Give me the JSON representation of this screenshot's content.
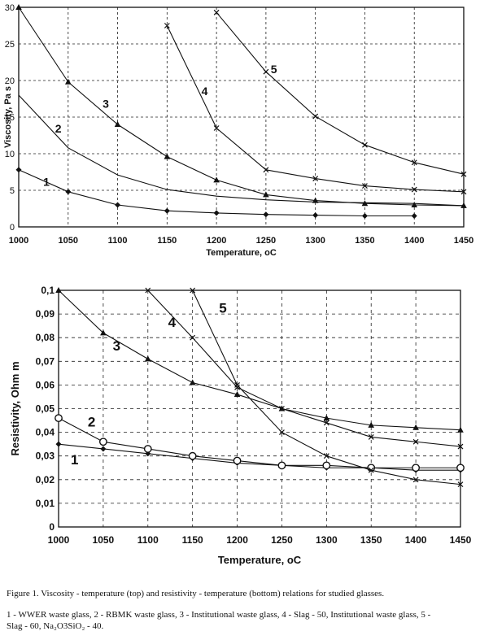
{
  "chart_data": [
    {
      "type": "line",
      "xlabel": "Temperature, oC",
      "ylabel": "Viscosity, Pa s",
      "xlim": [
        1000,
        1450
      ],
      "ylim": [
        0,
        30
      ],
      "xticks": [
        "1000",
        "1050",
        "1100",
        "1150",
        "1200",
        "1250",
        "1300",
        "1350",
        "1400",
        "1450"
      ],
      "yticks": [
        "0",
        "5",
        "10",
        "15",
        "20",
        "25",
        "30"
      ],
      "grid": true,
      "series": [
        {
          "name": "1",
          "marker": "diamond",
          "x": [
            1000,
            1050,
            1100,
            1150,
            1200,
            1250,
            1300,
            1350,
            1400
          ],
          "y": [
            7.8,
            4.8,
            3.0,
            2.2,
            1.9,
            1.7,
            1.6,
            1.5,
            1.5
          ]
        },
        {
          "name": "2",
          "marker": "none",
          "x": [
            1000,
            1050,
            1100,
            1150,
            1200,
            1250,
            1300,
            1350,
            1400,
            1450
          ],
          "y": [
            18.0,
            10.8,
            7.1,
            5.1,
            4.2,
            3.7,
            3.4,
            3.3,
            3.2,
            2.9
          ]
        },
        {
          "name": "3",
          "marker": "triangle",
          "x": [
            1000,
            1050,
            1100,
            1150,
            1200,
            1250,
            1300,
            1350,
            1400,
            1450
          ],
          "y": [
            30.0,
            19.8,
            14.0,
            9.6,
            6.4,
            4.4,
            3.6,
            3.2,
            3.0,
            2.9
          ]
        },
        {
          "name": "4",
          "marker": "x",
          "x": [
            1150,
            1200,
            1250,
            1300,
            1350,
            1400,
            1450
          ],
          "y": [
            27.5,
            13.5,
            7.8,
            6.6,
            5.6,
            5.1,
            4.8
          ]
        },
        {
          "name": "5",
          "marker": "x",
          "x": [
            1200,
            1250,
            1300,
            1350,
            1400,
            1450
          ],
          "y": [
            29.3,
            21.2,
            15.1,
            11.2,
            8.8,
            7.2
          ]
        }
      ],
      "curve_labels": [
        {
          "text": "1",
          "x": 1028,
          "y": 5.6
        },
        {
          "text": "2",
          "x": 1040,
          "y": 12.9
        },
        {
          "text": "3",
          "x": 1088,
          "y": 16.3
        },
        {
          "text": "4",
          "x": 1188,
          "y": 18.0
        },
        {
          "text": "5",
          "x": 1258,
          "y": 21.0
        }
      ]
    },
    {
      "type": "line",
      "xlabel": "Temperature, oC",
      "ylabel": "Resistivity, Ohm m",
      "xlim": [
        1000,
        1450
      ],
      "ylim": [
        0,
        0.1
      ],
      "xticks": [
        "1000",
        "1050",
        "1100",
        "1150",
        "1200",
        "1250",
        "1300",
        "1350",
        "1400",
        "1450"
      ],
      "yticks": [
        "0",
        "0,01",
        "0,02",
        "0,03",
        "0,04",
        "0,05",
        "0,06",
        "0,07",
        "0,08",
        "0,09",
        "0,1"
      ],
      "grid": true,
      "series": [
        {
          "name": "1",
          "marker": "diamond",
          "x": [
            1000,
            1050,
            1100,
            1150,
            1200,
            1250,
            1300,
            1350,
            1400,
            1450
          ],
          "y": [
            0.035,
            0.033,
            0.031,
            0.029,
            0.027,
            0.026,
            0.025,
            0.025,
            0.024,
            0.024
          ]
        },
        {
          "name": "2",
          "marker": "circle",
          "x": [
            1000,
            1050,
            1100,
            1150,
            1200,
            1250,
            1300,
            1350,
            1400,
            1450
          ],
          "y": [
            0.046,
            0.036,
            0.033,
            0.03,
            0.028,
            0.026,
            0.026,
            0.025,
            0.025,
            0.025
          ]
        },
        {
          "name": "3",
          "marker": "triangle",
          "x": [
            1000,
            1050,
            1100,
            1150,
            1200,
            1250,
            1300,
            1350,
            1400,
            1450
          ],
          "y": [
            0.1,
            0.082,
            0.071,
            0.061,
            0.056,
            0.05,
            0.046,
            0.043,
            0.042,
            0.041
          ]
        },
        {
          "name": "4",
          "marker": "x",
          "x": [
            1100,
            1150,
            1200,
            1250,
            1300,
            1350,
            1400,
            1450
          ],
          "y": [
            0.1,
            0.08,
            0.059,
            0.05,
            0.044,
            0.038,
            0.036,
            0.034
          ]
        },
        {
          "name": "5",
          "marker": "x",
          "x": [
            1150,
            1200,
            1250,
            1300,
            1350,
            1400,
            1450
          ],
          "y": [
            0.1,
            0.06,
            0.04,
            0.03,
            0.024,
            0.02,
            0.018
          ]
        }
      ],
      "curve_labels": [
        {
          "text": "1",
          "x": 1018,
          "y": 0.0265
        },
        {
          "text": "2",
          "x": 1037,
          "y": 0.0425
        },
        {
          "text": "3",
          "x": 1065,
          "y": 0.0745
        },
        {
          "text": "4",
          "x": 1127,
          "y": 0.0845
        },
        {
          "text": "5",
          "x": 1184,
          "y": 0.0905
        }
      ]
    }
  ],
  "caption": {
    "title": "Figure 1. Viscosity - temperature (top) and resistivity - temperature (bottom) relations for studied glasses.",
    "legend_lines": [
      "1 - WWER waste glass, 2 - RBMK waste glass, 3 - Institutional waste glass, 4 - Slag - 50, Institutional waste glass, 5 -",
      "Slag - 60, Na₂O3SiO₂ - 40."
    ]
  }
}
